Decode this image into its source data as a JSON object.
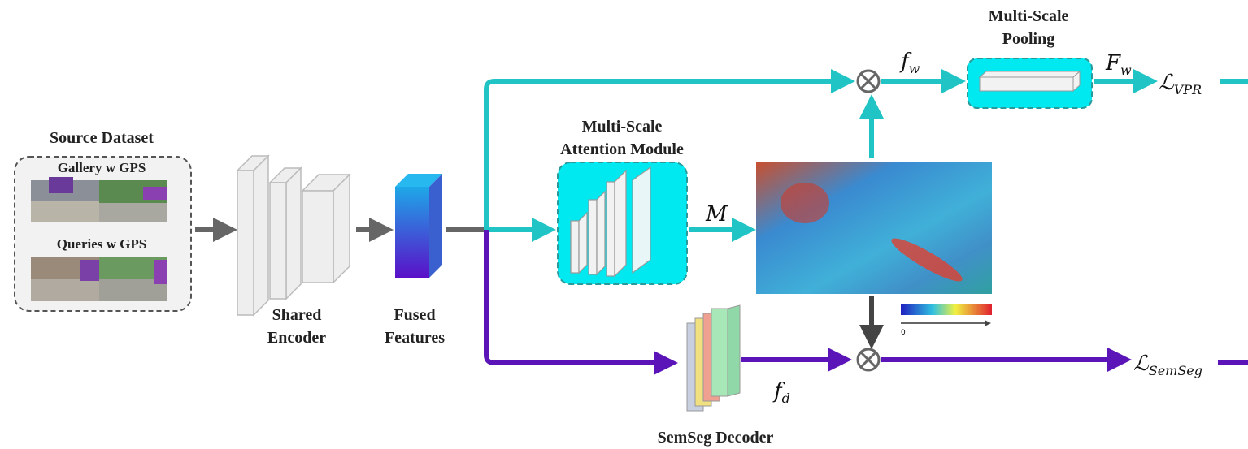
{
  "source_dataset": {
    "title": "Source Dataset",
    "gallery_label": "Gallery w GPS",
    "queries_label": "Queries w GPS"
  },
  "shared_encoder": {
    "label": [
      "Shared",
      "Encoder"
    ]
  },
  "fused_features": {
    "label": [
      "Fused",
      "Features"
    ]
  },
  "attention_module": {
    "label": [
      "Multi-Scale",
      "Attention Module"
    ]
  },
  "attention_map": {
    "symbol": "M",
    "colorbar_tick": "0"
  },
  "pooling": {
    "label": [
      "Multi-Scale",
      "Pooling"
    ]
  },
  "feature_w": {
    "main": "f",
    "sub": "w"
  },
  "pooled_w": {
    "main": "F",
    "sub": "w"
  },
  "loss_vpr": {
    "main": "ℒ",
    "sub": "VPR"
  },
  "feature_d": {
    "main": "f",
    "sub": "d"
  },
  "loss_semseg": {
    "main": "ℒ",
    "sub": "SemSeg"
  },
  "decoder": {
    "label": "SemSeg Decoder"
  }
}
